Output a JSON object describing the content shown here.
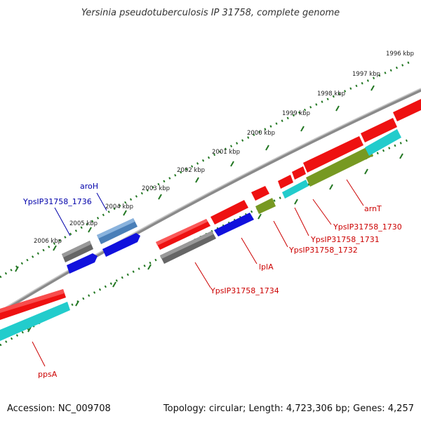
{
  "title": "Yersinia pseudotuberculosis IP 31758, complete genome",
  "footer": {
    "accession": "Accession: NC_009708",
    "summary": "Topology: circular; Length: 4,723,306 bp; Genes: 4,257"
  },
  "ticks": [
    "1996 kbp",
    "1997 kbp",
    "1998 kbp",
    "1999 kbp",
    "2000 kbp",
    "2001 kbp",
    "2002 kbp",
    "2003 kbp",
    "2004 kbp",
    "2005 kbp",
    "2006 kbp"
  ],
  "gene_labels": {
    "aroH": "aroH",
    "ypsip_1736": "YpsIP31758_1736",
    "arnT": "arnT",
    "ypsip_1730": "YpsIP31758_1730",
    "ypsip_1731": "YpsIP31758_1731",
    "ypsip_1732": "YpsIP31758_1732",
    "lplA": "lplA",
    "ypsip_1734": "YpsIP31758_1734",
    "ppsA": "ppsA"
  },
  "colors": {
    "red": "#ee1111",
    "cyan": "#22cccc",
    "olive": "#779922",
    "gray": "#666666",
    "blue": "#1111dd",
    "steelblue": "#4a7fb8",
    "tick_green": "#227722",
    "label_red": "#cc0000",
    "label_blue": "#0000aa"
  }
}
